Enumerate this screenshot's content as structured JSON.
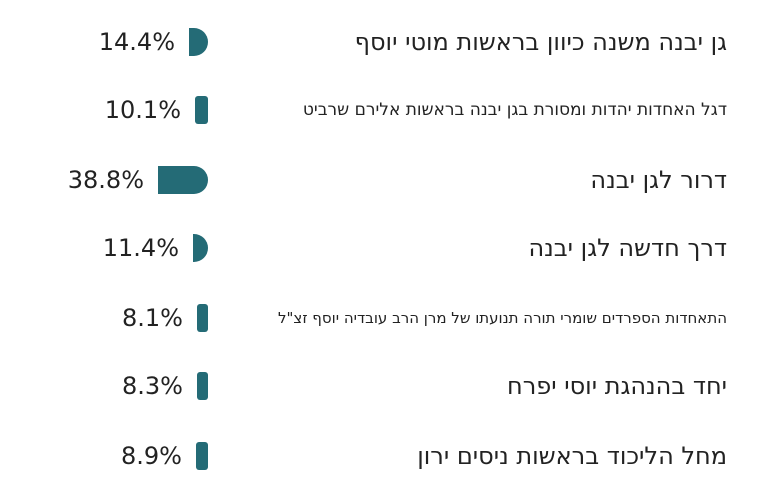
{
  "chart_data": {
    "type": "bar",
    "orientation": "horizontal",
    "categories": [
      "גן יבנה משנה כיוון בראשות מוטי יוסף",
      "דגל האחדות יהדות ומסורת בגן יבנה בראשות אלירם שרביט",
      "דרור לגן יבנה",
      "דרך חדשה לגן יבנה",
      "התאחדות הספרדים שומרי תורה תנועתו של מרן הרב עובדיה יוסף זצ\"ל",
      "יחד בהנהגת יוסי יפרח",
      "מחל הליכוד בראשות ניסים ירון"
    ],
    "values": [
      14.4,
      10.1,
      38.8,
      11.4,
      8.1,
      8.3,
      8.9
    ],
    "value_labels": [
      "14.4%",
      "10.1%",
      "38.8%",
      "11.4%",
      "8.1%",
      "8.3%",
      "8.9%"
    ],
    "unit": "%",
    "bar_color": "#246b76"
  }
}
